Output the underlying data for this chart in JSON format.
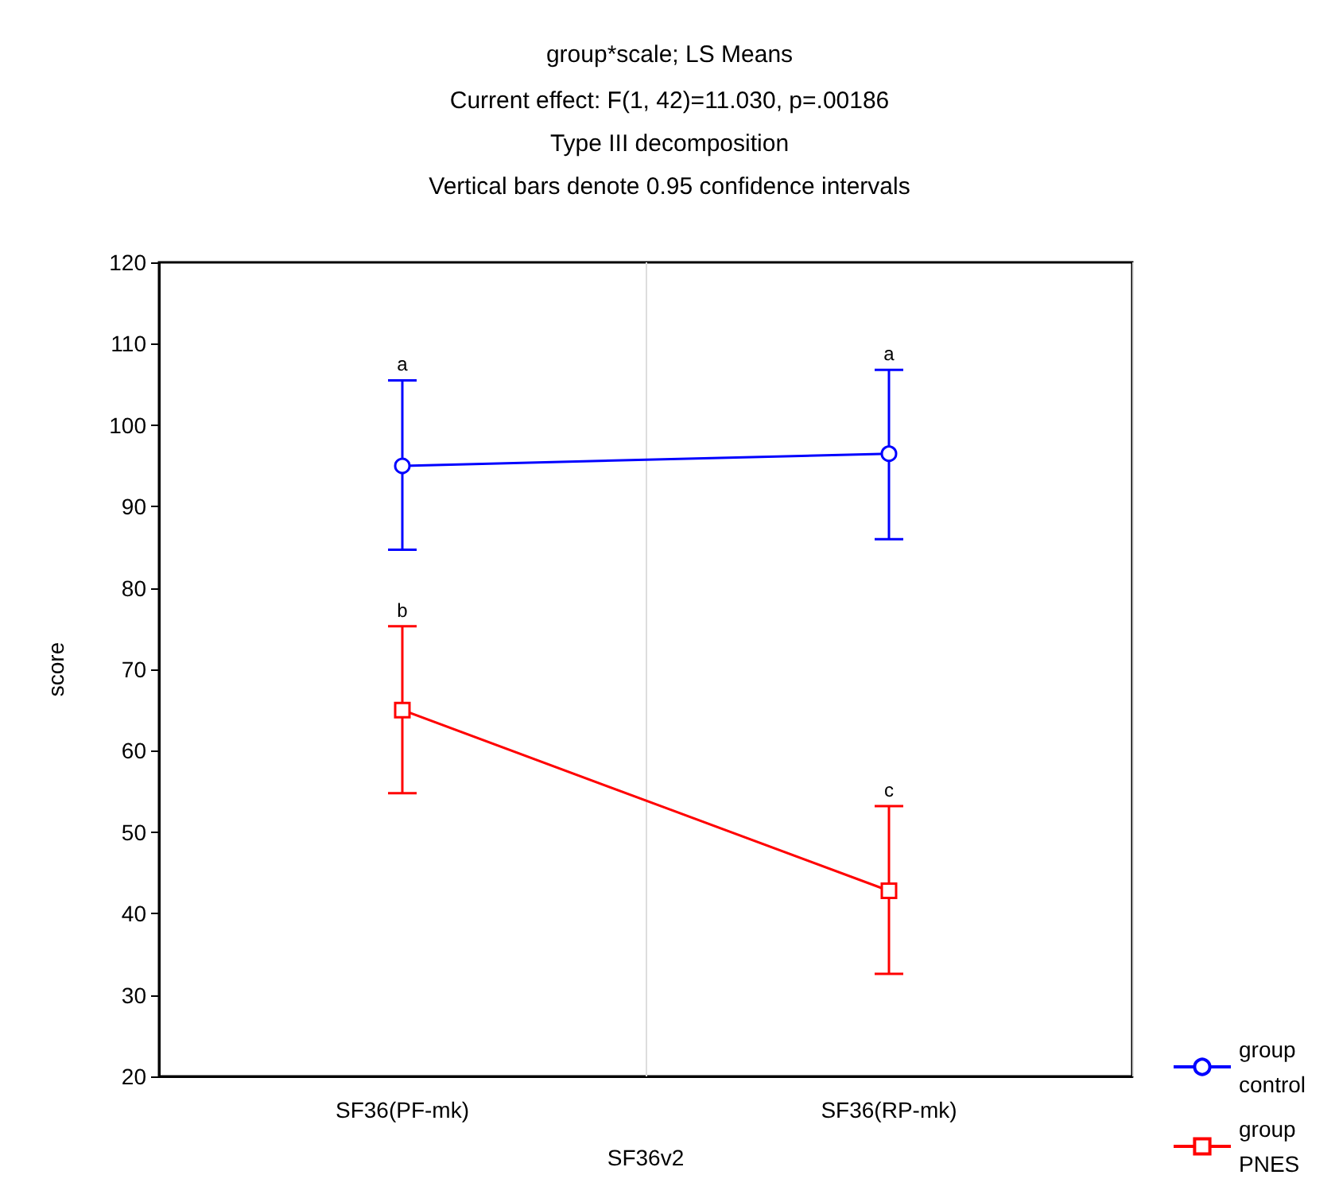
{
  "chart_data": {
    "type": "line",
    "title": "group*scale; LS Means",
    "subtitle": "Current effect: F(1, 42)=11.030, p=.00186\nType III decomposition\nVertical bars denote 0.95 confidence intervals",
    "xlabel": "SF36v2",
    "ylabel": "score",
    "categories": [
      "SF36(PF-mk)",
      "SF36(RP-mk)"
    ],
    "series": [
      {
        "name": "group control",
        "color": "#0000ff",
        "marker": "circle",
        "values": [
          95,
          96.5
        ],
        "errors": [
          [
            84.7,
            105.5
          ],
          [
            86,
            106.8
          ]
        ]
      },
      {
        "name": "group PNES",
        "color": "#ff0000",
        "marker": "square",
        "values": [
          65,
          42.8
        ],
        "errors": [
          [
            54.8,
            75.3
          ],
          [
            32.6,
            53.2
          ]
        ]
      }
    ],
    "annotations": [
      {
        "text": "a",
        "x": "SF36(PF-mk)",
        "y": 105.5
      },
      {
        "text": "a",
        "x": "SF36(RP-mk)",
        "y": 106.8
      },
      {
        "text": "b",
        "x": "SF36(PF-mk)",
        "y": 75.3
      },
      {
        "text": "c",
        "x": "SF36(RP-mk)",
        "y": 53.2
      }
    ],
    "ylim": [
      20,
      120
    ],
    "yticks": [
      20,
      30,
      40,
      50,
      60,
      70,
      80,
      90,
      100,
      110,
      120
    ],
    "grid": "x",
    "legend": "bottom right",
    "line_style": "solid"
  }
}
